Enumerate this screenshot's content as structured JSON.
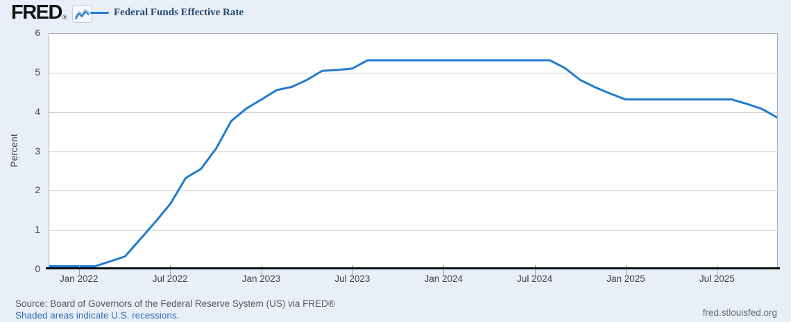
{
  "header": {
    "logo_text": "FRED",
    "registered_mark": "®",
    "legend": {
      "label": "Federal Funds Effective Rate"
    }
  },
  "chart_data": {
    "type": "line",
    "title": "Federal Funds Effective Rate",
    "xlabel": "",
    "ylabel": "Percent",
    "ylim": [
      0,
      6
    ],
    "yticks": [
      0,
      1,
      2,
      3,
      4,
      5,
      6
    ],
    "grid": "horizontal-only",
    "legend_position": "top-left",
    "line_color": "#1f7bce",
    "x": [
      "2021-11",
      "2021-12",
      "2022-01",
      "2022-02",
      "2022-03",
      "2022-04",
      "2022-05",
      "2022-06",
      "2022-07",
      "2022-08",
      "2022-09",
      "2022-10",
      "2022-11",
      "2022-12",
      "2023-01",
      "2023-02",
      "2023-03",
      "2023-04",
      "2023-05",
      "2023-06",
      "2023-07",
      "2023-08",
      "2023-09",
      "2023-10",
      "2023-11",
      "2023-12",
      "2024-01",
      "2024-02",
      "2024-03",
      "2024-04",
      "2024-05",
      "2024-06",
      "2024-07",
      "2024-08",
      "2024-09",
      "2024-10",
      "2024-11",
      "2024-12",
      "2025-01",
      "2025-02",
      "2025-03",
      "2025-04",
      "2025-05",
      "2025-06",
      "2025-07",
      "2025-08",
      "2025-09",
      "2025-10",
      "2025-11"
    ],
    "values": [
      0.08,
      0.08,
      0.08,
      0.08,
      0.2,
      0.33,
      0.77,
      1.21,
      1.68,
      2.33,
      2.56,
      3.08,
      3.78,
      4.1,
      4.33,
      4.57,
      4.65,
      4.83,
      5.06,
      5.08,
      5.12,
      5.33,
      5.33,
      5.33,
      5.33,
      5.33,
      5.33,
      5.33,
      5.33,
      5.33,
      5.33,
      5.33,
      5.33,
      5.33,
      5.13,
      4.83,
      4.64,
      4.48,
      4.33,
      4.33,
      4.33,
      4.33,
      4.33,
      4.33,
      4.33,
      4.33,
      4.22,
      4.09,
      3.87
    ],
    "x_ticks": [
      {
        "label": "Jan 2022",
        "month": "2022-01"
      },
      {
        "label": "Jul 2022",
        "month": "2022-07"
      },
      {
        "label": "Jan 2023",
        "month": "2023-01"
      },
      {
        "label": "Jul 2023",
        "month": "2023-07"
      },
      {
        "label": "Jan 2024",
        "month": "2024-01"
      },
      {
        "label": "Jul 2024",
        "month": "2024-07"
      },
      {
        "label": "Jan 2025",
        "month": "2025-01"
      },
      {
        "label": "Jul 2025",
        "month": "2025-07"
      }
    ]
  },
  "footer": {
    "source_line": "Source: Board of Governors of the Federal Reserve System (US) via FRED®",
    "recessions_note": "Shaded areas indicate U.S. recessions.",
    "site_url": "fred.stlouisfed.org"
  }
}
